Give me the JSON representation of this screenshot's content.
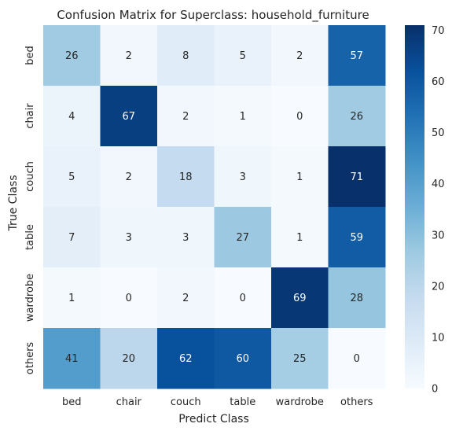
{
  "chart_data": {
    "type": "heatmap",
    "title": "Confusion Matrix for Superclass: household_furniture",
    "xlabel": "Predict Class",
    "ylabel": "True Class",
    "x_categories": [
      "bed",
      "chair",
      "couch",
      "table",
      "wardrobe",
      "others"
    ],
    "y_categories": [
      "bed",
      "chair",
      "couch",
      "table",
      "wardrobe",
      "others"
    ],
    "values": [
      [
        26,
        2,
        8,
        5,
        2,
        57
      ],
      [
        4,
        67,
        2,
        1,
        0,
        26
      ],
      [
        5,
        2,
        18,
        3,
        1,
        71
      ],
      [
        7,
        3,
        3,
        27,
        1,
        59
      ],
      [
        1,
        0,
        2,
        0,
        69,
        28
      ],
      [
        41,
        20,
        62,
        60,
        25,
        0
      ]
    ],
    "colormap": "Blues",
    "vmin": 0,
    "vmax": 71,
    "colorbar_ticks": [
      0,
      10,
      20,
      30,
      40,
      50,
      60,
      70
    ],
    "grid": false,
    "legend": "right colorbar"
  }
}
